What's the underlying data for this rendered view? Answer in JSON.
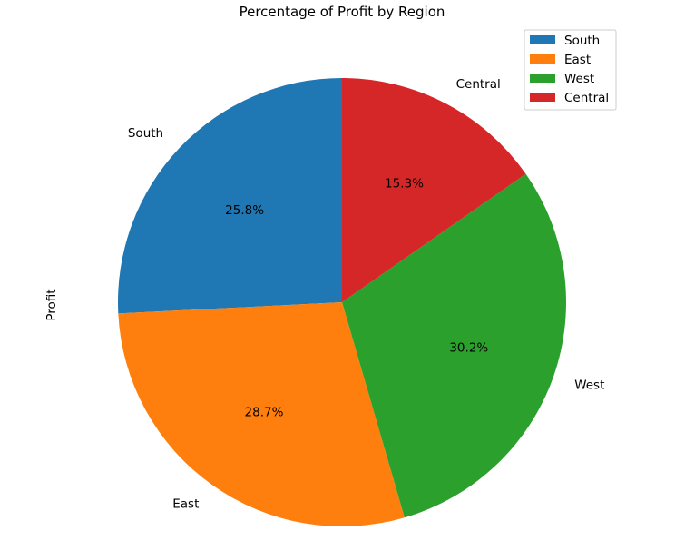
{
  "chart_data": {
    "type": "pie",
    "title": "Percentage of Profit by Region",
    "ylabel": "Profit",
    "categories": [
      "South",
      "East",
      "West",
      "Central"
    ],
    "values": [
      25.8,
      28.7,
      30.2,
      15.3
    ],
    "value_labels": [
      "25.8%",
      "28.7%",
      "30.2%",
      "15.3%"
    ],
    "colors": [
      "#1f77b4",
      "#ff7f0e",
      "#2ca02c",
      "#d62728"
    ],
    "start_angle_deg": 90,
    "direction": "counterclockwise",
    "legend": {
      "placement": "top-right",
      "entries": [
        "South",
        "East",
        "West",
        "Central"
      ]
    }
  }
}
